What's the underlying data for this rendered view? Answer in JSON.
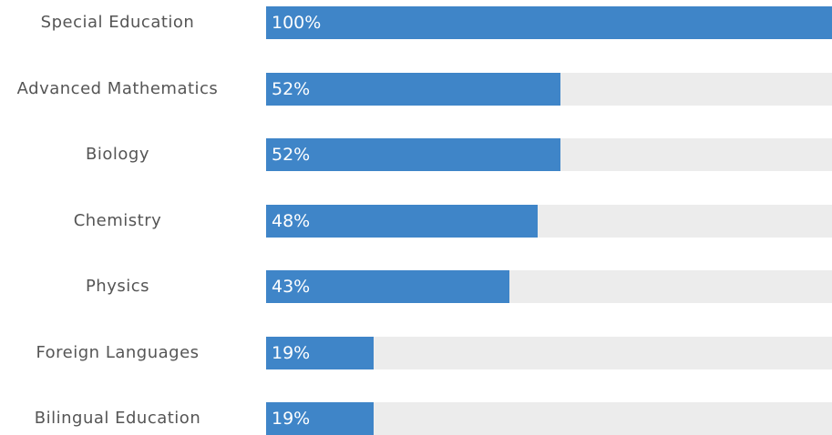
{
  "chart_data": {
    "type": "bar",
    "orientation": "horizontal",
    "categories": [
      "Special Education",
      "Advanced Mathematics",
      "Biology",
      "Chemistry",
      "Physics",
      "Foreign Languages",
      "Bilingual Education"
    ],
    "values": [
      100,
      52,
      52,
      48,
      43,
      19,
      19
    ],
    "value_labels": [
      "100%",
      "52%",
      "52%",
      "48%",
      "43%",
      "19%",
      "19%"
    ],
    "xlim": [
      0,
      100
    ],
    "grid": false,
    "legend": "none",
    "colors": {
      "bar": "#3f85c8",
      "track": "#ececec",
      "category_text": "#555555",
      "value_text": "#ffffff"
    }
  }
}
